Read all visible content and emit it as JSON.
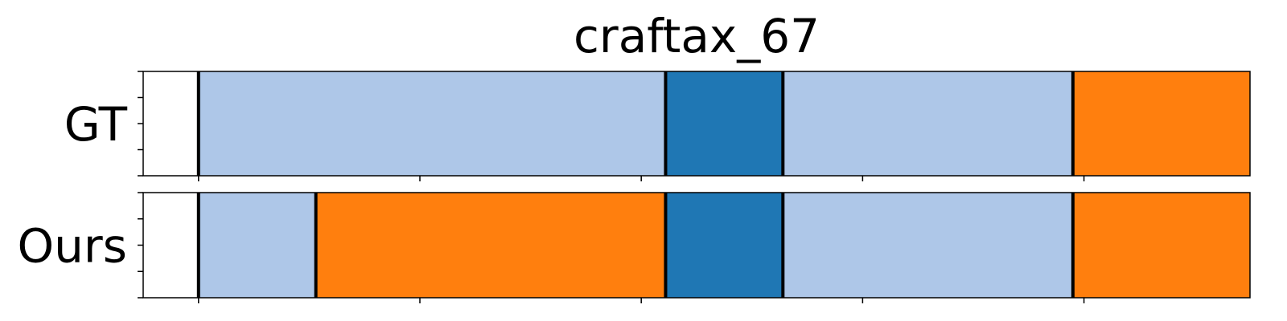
{
  "chart_data": {
    "type": "segmentation-timeline",
    "title": "craftax_67",
    "x_range": [
      0,
      100
    ],
    "x_ticks": [
      5,
      25,
      45,
      65,
      85,
      105
    ],
    "boundary_color": "#000000",
    "colors": {
      "light_blue": "#aec7e8",
      "blue": "#1f77b4",
      "orange": "#ff7f0e"
    },
    "rows": [
      {
        "label": "GT",
        "segments": [
          {
            "start": 5,
            "end": 47.2,
            "color": "light_blue"
          },
          {
            "start": 47.2,
            "end": 57.8,
            "color": "blue"
          },
          {
            "start": 57.8,
            "end": 84.0,
            "color": "light_blue"
          },
          {
            "start": 84.0,
            "end": 105,
            "color": "orange"
          }
        ]
      },
      {
        "label": "Ours",
        "segments": [
          {
            "start": 5,
            "end": 15.6,
            "color": "light_blue"
          },
          {
            "start": 15.6,
            "end": 47.2,
            "color": "orange"
          },
          {
            "start": 47.2,
            "end": 57.8,
            "color": "blue"
          },
          {
            "start": 57.8,
            "end": 84.0,
            "color": "light_blue"
          },
          {
            "start": 84.0,
            "end": 105,
            "color": "orange"
          }
        ]
      }
    ]
  }
}
